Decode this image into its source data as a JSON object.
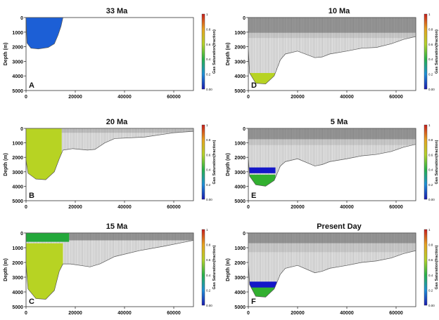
{
  "chart_data": [
    {
      "type": "heatmap",
      "title": "33 Ma",
      "label": "A",
      "ylabel": "Depth (m)",
      "xlabel": "",
      "colorbar_label": "Gas Saturation(fraction)",
      "colorbar_ticks": [
        "1",
        "0.8",
        "0.6",
        "0.4",
        "0.2",
        "0.00"
      ],
      "xticks": [
        "0",
        "20000",
        "40000",
        "60000"
      ],
      "yticks": [
        "0",
        "1000",
        "2000",
        "3000",
        "4000",
        "5000"
      ],
      "xlim": [
        0,
        68000
      ],
      "ylim": [
        5000,
        0
      ],
      "basin_bottom": [
        [
          0,
          0
        ],
        [
          400,
          1750
        ],
        [
          2000,
          2100
        ],
        [
          5000,
          2150
        ],
        [
          9000,
          2050
        ],
        [
          11500,
          1800
        ],
        [
          13000,
          1200
        ],
        [
          14200,
          600
        ],
        [
          15000,
          0
        ]
      ],
      "gas_zones": [
        {
          "top": 0,
          "base": 2200,
          "x_end": 15000,
          "color": "#1c5fd6"
        }
      ],
      "grey_layers": [],
      "colorbar_unit": "fraction"
    },
    {
      "type": "heatmap",
      "title": "10 Ma",
      "label": "D",
      "ylabel": "Depth (m)",
      "xlabel": "",
      "colorbar_label": "Gas Saturation(fraction)",
      "colorbar_ticks": [
        "1",
        "0.8",
        "0.6",
        "0.4",
        "0.2",
        "0.00"
      ],
      "xticks": [
        "0",
        "20000",
        "40000",
        "60000"
      ],
      "yticks": [
        "0",
        "1000",
        "2000",
        "3000",
        "4000",
        "5000"
      ],
      "xlim": [
        0,
        68000
      ],
      "ylim": [
        5000,
        0
      ],
      "basin_bottom": [
        [
          0,
          2100
        ],
        [
          500,
          3800
        ],
        [
          3000,
          4500
        ],
        [
          7000,
          4550
        ],
        [
          10500,
          4000
        ],
        [
          13000,
          2900
        ],
        [
          15000,
          2500
        ],
        [
          20000,
          2300
        ],
        [
          27000,
          2750
        ],
        [
          30000,
          2700
        ],
        [
          33000,
          2500
        ],
        [
          40000,
          2300
        ],
        [
          46000,
          2100
        ],
        [
          52000,
          2050
        ],
        [
          58000,
          1800
        ],
        [
          63000,
          1500
        ],
        [
          68000,
          1300
        ]
      ],
      "gas_zones": [
        {
          "top": 3800,
          "base": 4600,
          "x_end": 11500,
          "color": "#b7d323"
        }
      ],
      "grey_layers": [
        {
          "top": 0,
          "base": 1050,
          "shade": "#9a9a9a"
        },
        {
          "top": 1050,
          "base": 1400,
          "shade": "#d4d4d4"
        }
      ],
      "colorbar_unit": "fraction"
    },
    {
      "type": "heatmap",
      "title": "20 Ma",
      "label": "B",
      "ylabel": "Depth (m)",
      "xlabel": "",
      "colorbar_label": "Gas Saturation(fraction)",
      "colorbar_ticks": [
        "1",
        "0.8",
        "0.6",
        "0.4",
        "0.2",
        "0.00"
      ],
      "xticks": [
        "0",
        "20000",
        "40000",
        "60000"
      ],
      "yticks": [
        "0",
        "1000",
        "2000",
        "3000",
        "4000",
        "5000"
      ],
      "xlim": [
        0,
        68000
      ],
      "ylim": [
        5000,
        0
      ],
      "basin_bottom": [
        [
          0,
          2200
        ],
        [
          800,
          3100
        ],
        [
          4000,
          3500
        ],
        [
          8000,
          3550
        ],
        [
          11500,
          3000
        ],
        [
          13500,
          2100
        ],
        [
          15000,
          1500
        ],
        [
          17000,
          1450
        ],
        [
          19000,
          1400
        ],
        [
          25000,
          1500
        ],
        [
          28000,
          1450
        ],
        [
          32000,
          1000
        ],
        [
          36000,
          700
        ],
        [
          48000,
          600
        ],
        [
          60000,
          300
        ],
        [
          68000,
          200
        ]
      ],
      "gas_zones": [
        {
          "top": 0,
          "base": 3600,
          "x_end": 14500,
          "color": "#b7d323"
        }
      ],
      "grey_layers": [
        {
          "top": 0,
          "base": 300,
          "shade": "#c8c8c8"
        }
      ],
      "colorbar_unit": "fraction"
    },
    {
      "type": "heatmap",
      "title": "5 Ma",
      "label": "E",
      "ylabel": "Depth (m)",
      "xlabel": "",
      "colorbar_label": "Gas Saturation(fraction)",
      "colorbar_ticks": [
        "1",
        "0.8",
        "0.6",
        "0.4",
        "0.2",
        "0.00"
      ],
      "xticks": [
        "0",
        "20000",
        "40000",
        "60000"
      ],
      "yticks": [
        "0",
        "1000",
        "2000",
        "3000",
        "4000",
        "5000"
      ],
      "xlim": [
        0,
        68000
      ],
      "ylim": [
        5000,
        0
      ],
      "basin_bottom": [
        [
          0,
          2000
        ],
        [
          500,
          3300
        ],
        [
          3000,
          3900
        ],
        [
          7000,
          4000
        ],
        [
          10500,
          3600
        ],
        [
          13000,
          2600
        ],
        [
          15000,
          2300
        ],
        [
          20000,
          2100
        ],
        [
          27000,
          2600
        ],
        [
          30000,
          2500
        ],
        [
          33000,
          2300
        ],
        [
          40000,
          2100
        ],
        [
          46000,
          1900
        ],
        [
          52000,
          1800
        ],
        [
          58000,
          1600
        ],
        [
          63000,
          1300
        ],
        [
          68000,
          1100
        ]
      ],
      "gas_zones": [
        {
          "top": 3200,
          "base": 4000,
          "x_end": 11000,
          "color": "#32b030"
        },
        {
          "top": 2700,
          "base": 3100,
          "x_end": 11000,
          "color": "#1417c8"
        }
      ],
      "grey_layers": [
        {
          "top": 0,
          "base": 750,
          "shade": "#9a9a9a"
        },
        {
          "top": 750,
          "base": 1150,
          "shade": "#d4d4d4"
        }
      ],
      "colorbar_unit": "fraction"
    },
    {
      "type": "heatmap",
      "title": "15 Ma",
      "label": "C",
      "ylabel": "Depth (m)",
      "xlabel": "",
      "colorbar_label": "Gas Saturation(fraction)",
      "colorbar_ticks": [
        "1",
        "0.8",
        "0.6",
        "0.4",
        "0.2",
        "0.00"
      ],
      "xticks": [
        "0",
        "20000",
        "40000",
        "60000"
      ],
      "yticks": [
        "0",
        "1000",
        "2000",
        "3000",
        "4000",
        "5000"
      ],
      "xlim": [
        0,
        68000
      ],
      "ylim": [
        5000,
        0
      ],
      "basin_bottom": [
        [
          0,
          2100
        ],
        [
          800,
          3800
        ],
        [
          4000,
          4450
        ],
        [
          8000,
          4500
        ],
        [
          11500,
          3900
        ],
        [
          13500,
          2600
        ],
        [
          15000,
          2100
        ],
        [
          18000,
          2100
        ],
        [
          22000,
          2200
        ],
        [
          26000,
          2300
        ],
        [
          30000,
          2100
        ],
        [
          36000,
          1600
        ],
        [
          46000,
          1200
        ],
        [
          56000,
          900
        ],
        [
          62000,
          700
        ],
        [
          68000,
          500
        ]
      ],
      "gas_zones": [
        {
          "top": 700,
          "base": 4500,
          "x_end": 15000,
          "color": "#b7d323"
        },
        {
          "top": 0,
          "base": 600,
          "x_end": 17500,
          "color": "#23a83a"
        }
      ],
      "grey_layers": [
        {
          "top": 0,
          "base": 500,
          "shade": "#9a9a9a"
        }
      ],
      "colorbar_unit": "fraction"
    },
    {
      "type": "heatmap",
      "title": "Present Day",
      "label": "F",
      "ylabel": "Depth (m)",
      "xlabel": "",
      "colorbar_label": "Gas Saturation(fraction)",
      "colorbar_ticks": [
        "1",
        "0.8",
        "0.6",
        "0.4",
        "0.2",
        "0.00"
      ],
      "xticks": [
        "0",
        "20000",
        "40000",
        "60000"
      ],
      "yticks": [
        "0",
        "1000",
        "2000",
        "3000",
        "4000",
        "5000"
      ],
      "xlim": [
        0,
        68000
      ],
      "ylim": [
        5000,
        0
      ],
      "basin_bottom": [
        [
          0,
          2100
        ],
        [
          500,
          3500
        ],
        [
          3000,
          4300
        ],
        [
          7000,
          4350
        ],
        [
          10500,
          3800
        ],
        [
          13000,
          2800
        ],
        [
          15000,
          2400
        ],
        [
          20000,
          2200
        ],
        [
          27000,
          2700
        ],
        [
          30000,
          2600
        ],
        [
          33000,
          2400
        ],
        [
          40000,
          2200
        ],
        [
          46000,
          2000
        ],
        [
          52000,
          1900
        ],
        [
          58000,
          1700
        ],
        [
          63000,
          1400
        ],
        [
          68000,
          1200
        ]
      ],
      "gas_zones": [
        {
          "top": 3600,
          "base": 4400,
          "x_end": 11500,
          "color": "#32b030"
        },
        {
          "top": 3300,
          "base": 3700,
          "x_end": 11500,
          "color": "#1417c8"
        }
      ],
      "grey_layers": [
        {
          "top": 0,
          "base": 700,
          "shade": "#9a9a9a"
        },
        {
          "top": 700,
          "base": 1300,
          "shade": "#d4d4d4"
        }
      ],
      "colorbar_unit": "fraction"
    }
  ]
}
